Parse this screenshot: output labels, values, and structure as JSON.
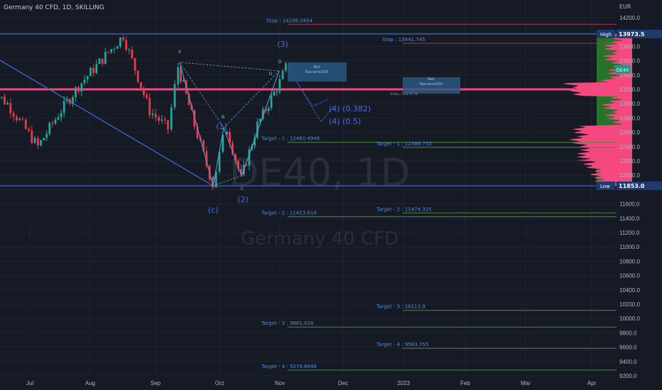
{
  "header": {
    "title": "Germany 40 CFD, 1D, SKILLING"
  },
  "watermark": {
    "symbol": "DE40, 1D",
    "name": "Germany 40 CFD"
  },
  "colors": {
    "background": "#161a25",
    "grid": "#1f2433",
    "up": "#26a69a",
    "down": "#f23645",
    "level_line": "#3d6fdc",
    "pivot": "#f5487f",
    "stop": "#b2394a",
    "target": "#4c8a3a",
    "label": "#4a90e2",
    "profile_pink": "#f5487f",
    "profile_green": "#2a7d2a"
  },
  "price_axis": {
    "currency": "EUR",
    "ticks": [
      "14200.0",
      "13800.0",
      "13600.0",
      "13400.0",
      "13200.0",
      "13000.0",
      "12800.0",
      "12600.0",
      "12400.0",
      "12200.0",
      "12000.0",
      "11600.0",
      "11400.0",
      "11200.0",
      "11000.0",
      "10800.0",
      "10600.0",
      "10400.0",
      "10200.0",
      "10000.0",
      "9800.0",
      "9600.0",
      "9400.0",
      "9200.0"
    ],
    "high": {
      "label": "High",
      "value": "13973.5"
    },
    "low": {
      "label": "Low",
      "value": "11853.0"
    },
    "symbol_badge": "DE40"
  },
  "time_axis": {
    "ticks": [
      "Jul",
      "Aug",
      "Sep",
      "Oct",
      "Nov",
      "Dec",
      "2023",
      "Feb",
      "Mar",
      "Apr"
    ]
  },
  "annotations": {
    "stops": [
      "Stop : 14108.0454",
      "Stop : 13841.745"
    ],
    "targets": [
      "Target - 1 : 12460.4946",
      "Target - 1 : 12388.755",
      "Target - 2 : 11423.619",
      "Target - 2 : 11474.325",
      "Target - 3 : 10113.9",
      "Target - 3 : 9881.028",
      "Target - 4 : 9583.755",
      "Target - 4 : 9279.8946"
    ],
    "pattern_boxes": [
      {
        "title": "Bat",
        "author": "Navarro200"
      },
      {
        "title": "Bat",
        "author": "Navarro200"
      }
    ],
    "entry": "Entry : 13175.73",
    "pattern_points": [
      "X",
      "A",
      "B",
      "C",
      "D",
      "D"
    ],
    "waves": [
      "(1)",
      "(2)",
      "(3)",
      "(c)",
      "(4) (0.382)",
      "(4) (0.5)"
    ]
  },
  "chart_data": {
    "type": "candlestick",
    "title": "Germany 40 CFD, 1D, SKILLING",
    "ylabel": "EUR",
    "ylim": [
      9200,
      14200
    ],
    "grid": true,
    "levels": {
      "high": 13973.5,
      "low": 11853.0,
      "pivot": 13200
    },
    "stops": [
      14108.0454,
      13841.745
    ],
    "targets_set1": [
      12460.4946,
      11423.619,
      9881.028,
      9279.8946
    ],
    "targets_set2": [
      12388.755,
      11474.325,
      10113.9,
      9583.755
    ],
    "swings": [
      {
        "date": "2022-06-10",
        "price": 13250
      },
      {
        "date": "2022-06-20",
        "price": 13000
      },
      {
        "date": "2022-07-05",
        "price": 12400
      },
      {
        "date": "2022-07-15",
        "price": 12850
      },
      {
        "date": "2022-07-25",
        "price": 13250
      },
      {
        "date": "2022-08-16",
        "price": 13950
      },
      {
        "date": "2022-08-29",
        "price": 12900
      },
      {
        "date": "2022-09-07",
        "price": 12650
      },
      {
        "date": "2022-09-12",
        "price": 13520
      },
      {
        "date": "2022-09-20",
        "price": 12700
      },
      {
        "date": "2022-09-29",
        "price": 11870
      },
      {
        "date": "2022-10-04",
        "price": 12500
      },
      {
        "date": "2022-10-06",
        "price": 12650
      },
      {
        "date": "2022-10-13",
        "price": 11950
      },
      {
        "date": "2022-10-21",
        "price": 12700
      },
      {
        "date": "2022-11-01",
        "price": 13300
      },
      {
        "date": "2022-11-04",
        "price": 13500
      }
    ]
  }
}
